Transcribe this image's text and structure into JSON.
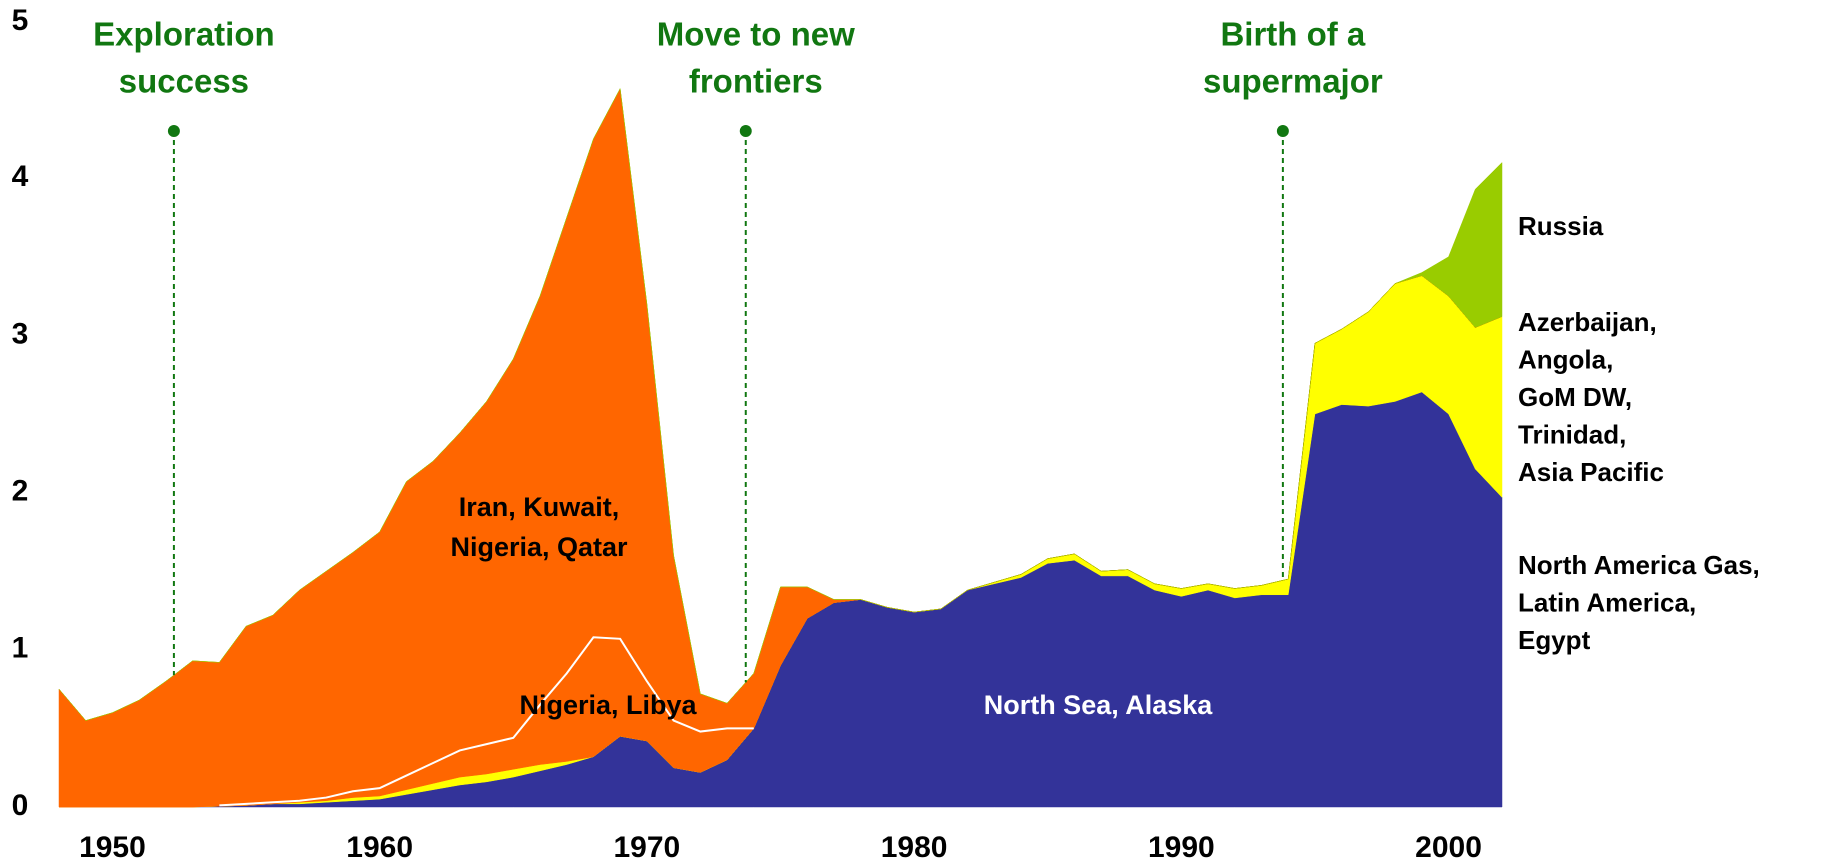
{
  "chart_data": {
    "type": "stacked_area",
    "x": [
      1948,
      1949,
      1950,
      1951,
      1952,
      1953,
      1954,
      1955,
      1956,
      1957,
      1958,
      1959,
      1960,
      1961,
      1962,
      1963,
      1964,
      1965,
      1966,
      1967,
      1968,
      1969,
      1970,
      1971,
      1972,
      1973,
      1974,
      1975,
      1976,
      1977,
      1978,
      1979,
      1980,
      1981,
      1982,
      1983,
      1984,
      1985,
      1986,
      1987,
      1988,
      1989,
      1990,
      1991,
      1992,
      1993,
      1994,
      1995,
      1996,
      1997,
      1998,
      1999,
      2000,
      2001,
      2002
    ],
    "xlim": [
      1948,
      2002
    ],
    "xticks": [
      1950,
      1960,
      1970,
      1980,
      1990,
      2000
    ],
    "ylim": [
      0,
      5
    ],
    "yticks": [
      0,
      1,
      2,
      3,
      4,
      5
    ],
    "series": [
      {
        "color": "#333399",
        "values": [
          0,
          0,
          0,
          0,
          0,
          0,
          0.005,
          0.01,
          0.02,
          0.02,
          0.03,
          0.04,
          0.05,
          0.08,
          0.11,
          0.14,
          0.16,
          0.19,
          0.23,
          0.27,
          0.32,
          0.45,
          0.42,
          0.25,
          0.22,
          0.3,
          0.5,
          0.9,
          1.2,
          1.3,
          1.32,
          1.27,
          1.24,
          1.26,
          1.38,
          1.42,
          1.46,
          1.55,
          1.57,
          1.47,
          1.47,
          1.38,
          1.34,
          1.38,
          1.33,
          1.35,
          1.35,
          2.5,
          2.56,
          2.55,
          2.58,
          2.64,
          2.5,
          2.15,
          1.97
        ]
      },
      {
        "color": "#ffff00",
        "values": [
          0,
          0,
          0,
          0,
          0,
          0,
          0,
          0,
          0,
          0.01,
          0.01,
          0.02,
          0.02,
          0.03,
          0.04,
          0.05,
          0.05,
          0.05,
          0.04,
          0.02,
          0,
          0,
          0,
          0,
          0,
          0,
          0,
          0,
          0,
          0,
          0,
          0,
          0,
          0,
          0,
          0.01,
          0.02,
          0.03,
          0.04,
          0.03,
          0.04,
          0.04,
          0.05,
          0.04,
          0.06,
          0.06,
          0.1,
          0.45,
          0.48,
          0.6,
          0.75,
          0.74,
          0.75,
          0.9,
          1.15
        ]
      },
      {
        "color": "#ff6600",
        "outline": "#ffffff",
        "values": [
          0,
          0,
          0,
          0,
          0,
          0,
          0.005,
          0.01,
          0.01,
          0.01,
          0.02,
          0.04,
          0.05,
          0.09,
          0.13,
          0.17,
          0.19,
          0.2,
          0.38,
          0.56,
          0.76,
          0.62,
          0.38,
          0.3,
          0.26,
          0.2,
          0,
          0,
          0,
          0,
          0,
          0,
          0,
          0,
          0,
          0,
          0,
          0,
          0,
          0,
          0,
          0,
          0,
          0,
          0,
          0,
          0,
          0,
          0,
          0,
          0,
          0,
          0,
          0,
          0
        ]
      },
      {
        "color": "#ff6600",
        "values": [
          0.75,
          0.55,
          0.6,
          0.68,
          0.8,
          0.93,
          0.91,
          1.13,
          1.19,
          1.34,
          1.44,
          1.52,
          1.63,
          1.87,
          1.92,
          2.02,
          2.18,
          2.41,
          2.6,
          2.9,
          3.17,
          3.5,
          2.4,
          1.05,
          0.24,
          0.16,
          0.35,
          0.5,
          0.2,
          0.02,
          0,
          0,
          0,
          0,
          0,
          0,
          0,
          0,
          0,
          0,
          0,
          0,
          0,
          0,
          0,
          0,
          0,
          0,
          0,
          0,
          0,
          0,
          0,
          0,
          0
        ]
      },
      {
        "color": "#99cc00",
        "values": [
          0,
          0,
          0,
          0,
          0,
          0,
          0,
          0,
          0,
          0,
          0,
          0,
          0,
          0,
          0,
          0,
          0,
          0,
          0,
          0,
          0,
          0,
          0,
          0,
          0,
          0,
          0,
          0,
          0,
          0,
          0,
          0,
          0,
          0,
          0,
          0,
          0,
          0,
          0,
          0,
          0,
          0,
          0,
          0,
          0,
          0,
          0,
          0,
          0,
          0,
          0,
          0.02,
          0.25,
          0.88,
          0.98
        ]
      }
    ],
    "annotations": [
      {
        "text": [
          "Exploration",
          "success"
        ],
        "x": 1952.3,
        "color": "#117711"
      },
      {
        "text": [
          "Move to new",
          "frontiers"
        ],
        "x": 1973.7,
        "color": "#117711"
      },
      {
        "text": [
          "Birth of a",
          "supermajor"
        ],
        "x": 1993.8,
        "color": "#117711"
      }
    ],
    "area_labels": [
      {
        "text": [
          "Iran, Kuwait,",
          "Nigeria, Qatar"
        ]
      },
      {
        "text": [
          "Nigeria, Libya"
        ]
      },
      {
        "text": [
          "North Sea, Alaska"
        ],
        "color": "#ffffff"
      },
      {
        "text": [
          "Russia"
        ]
      },
      {
        "text": [
          "Azerbaijan,",
          "Angola,",
          "GoM DW,",
          "Trinidad,",
          "Asia Pacific"
        ]
      },
      {
        "text": [
          "North America Gas,",
          "Latin America,",
          "Egypt"
        ]
      }
    ]
  }
}
